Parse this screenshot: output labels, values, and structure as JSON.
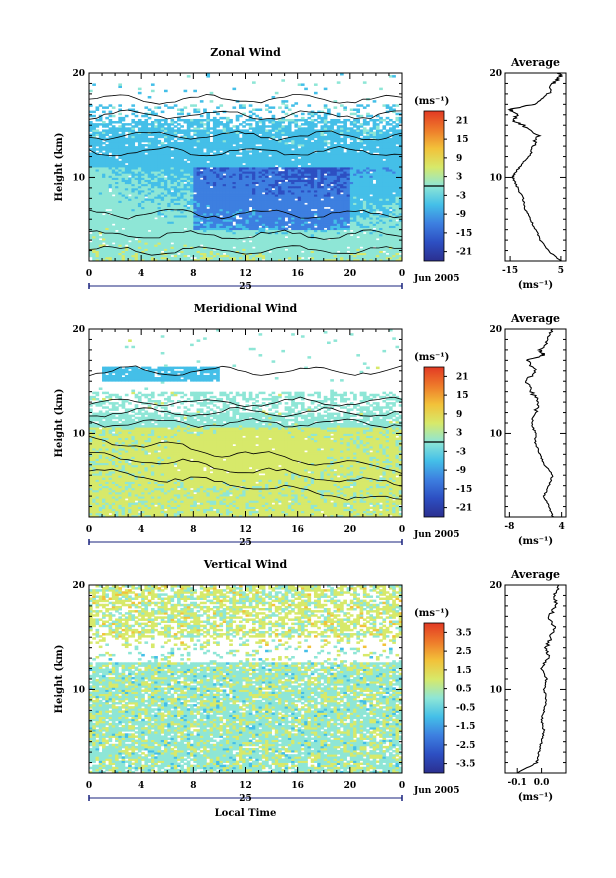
{
  "chart_data": [
    {
      "type": "heatmap",
      "title": "Zonal Wind",
      "xlabel": "",
      "ylabel": "Height (km)",
      "x_ticks": [
        "0",
        "4",
        "8",
        "12",
        "16",
        "20",
        "0"
      ],
      "y_ticks": [
        "10",
        "20"
      ],
      "xlim": [
        0,
        24
      ],
      "ylim": [
        2,
        20
      ],
      "date_day": "25",
      "date_label": "Jun 2005",
      "colorbar": {
        "unit": "(ms⁻¹)",
        "ticks": [
          "21",
          "15",
          "9",
          "3",
          "-3",
          "-9",
          "-15",
          "-21"
        ],
        "range": [
          -24,
          24
        ],
        "contour_level": 0
      },
      "average_profile": {
        "title": "Average",
        "xlabel": "(ms⁻¹)",
        "x_ticks": [
          "-15",
          "5"
        ],
        "xlim": [
          -17,
          7
        ],
        "y_ticks": [
          "10",
          "20"
        ],
        "height": [
          2,
          3,
          4,
          5,
          6,
          7,
          8,
          9,
          9.5,
          10,
          10.5,
          11,
          12,
          13,
          14,
          15,
          15.5,
          16,
          16.5,
          17,
          18,
          19,
          19.5,
          20
        ],
        "values": [
          5,
          0,
          -3,
          -5,
          -7,
          -9,
          -10,
          -12,
          -13,
          -14,
          -13,
          -11,
          -8,
          -6,
          -4,
          -10,
          -14,
          -12,
          -15,
          -6,
          0,
          2,
          4,
          5
        ]
      }
    },
    {
      "type": "heatmap",
      "title": "Meridional Wind",
      "xlabel": "",
      "ylabel": "Height (km)",
      "x_ticks": [
        "0",
        "4",
        "8",
        "12",
        "16",
        "20",
        "0"
      ],
      "y_ticks": [
        "10",
        "20"
      ],
      "xlim": [
        0,
        24
      ],
      "ylim": [
        2,
        20
      ],
      "date_day": "25",
      "date_label": "Jun 2005",
      "colorbar": {
        "unit": "(ms⁻¹)",
        "ticks": [
          "21",
          "15",
          "9",
          "3",
          "-3",
          "-9",
          "-15",
          "-21"
        ],
        "range": [
          -24,
          24
        ],
        "contour_level": 0
      },
      "average_profile": {
        "title": "Average",
        "xlabel": "(ms⁻¹)",
        "x_ticks": [
          "-8",
          "4"
        ],
        "xlim": [
          -9,
          5
        ],
        "y_ticks": [
          "10",
          "20"
        ],
        "height": [
          2,
          3,
          4,
          5,
          6,
          7,
          8,
          9,
          10,
          11,
          12,
          13,
          14,
          15,
          16,
          17,
          17.5,
          18,
          19,
          20
        ],
        "values": [
          2,
          1,
          0,
          1,
          2,
          0,
          -1,
          -2,
          -2,
          -3,
          -2,
          -1,
          -3,
          -4,
          -2,
          -4,
          0,
          -1,
          1,
          2
        ]
      }
    },
    {
      "type": "heatmap",
      "title": "Vertical Wind",
      "xlabel": "Local Time",
      "ylabel": "Height (km)",
      "x_ticks": [
        "0",
        "4",
        "8",
        "12",
        "16",
        "20",
        "0"
      ],
      "y_ticks": [
        "10",
        "20"
      ],
      "xlim": [
        0,
        24
      ],
      "ylim": [
        2,
        20
      ],
      "date_day": "25",
      "date_label": "Jun 2005",
      "colorbar": {
        "unit": "(ms⁻¹)",
        "ticks": [
          "3.5",
          "2.5",
          "1.5",
          "0.5",
          "-0.5",
          "-1.5",
          "-2.5",
          "-3.5"
        ],
        "range": [
          -4,
          4
        ]
      },
      "average_profile": {
        "title": "Average",
        "xlabel": "(ms⁻¹)",
        "x_ticks": [
          "-0.1",
          "0.0"
        ],
        "xlim": [
          -0.15,
          0.1
        ],
        "y_ticks": [
          "10",
          "20"
        ],
        "height": [
          2,
          3,
          4,
          5,
          6,
          7,
          8,
          9,
          10,
          11,
          12,
          13,
          14,
          15,
          16,
          17,
          18,
          19,
          20
        ],
        "values": [
          -0.1,
          -0.02,
          -0.01,
          0.0,
          0.01,
          0.0,
          0.01,
          0.02,
          0.01,
          0.02,
          0.0,
          0.03,
          0.02,
          0.04,
          0.05,
          0.03,
          0.06,
          0.05,
          0.07
        ]
      }
    }
  ],
  "colors": {
    "scale": [
      "#2b2f8f",
      "#2d4fc2",
      "#3d7fe0",
      "#44bfe8",
      "#8ee6d6",
      "#d7e96a",
      "#f2c23a",
      "#ee7a2a",
      "#e23a24"
    ]
  }
}
